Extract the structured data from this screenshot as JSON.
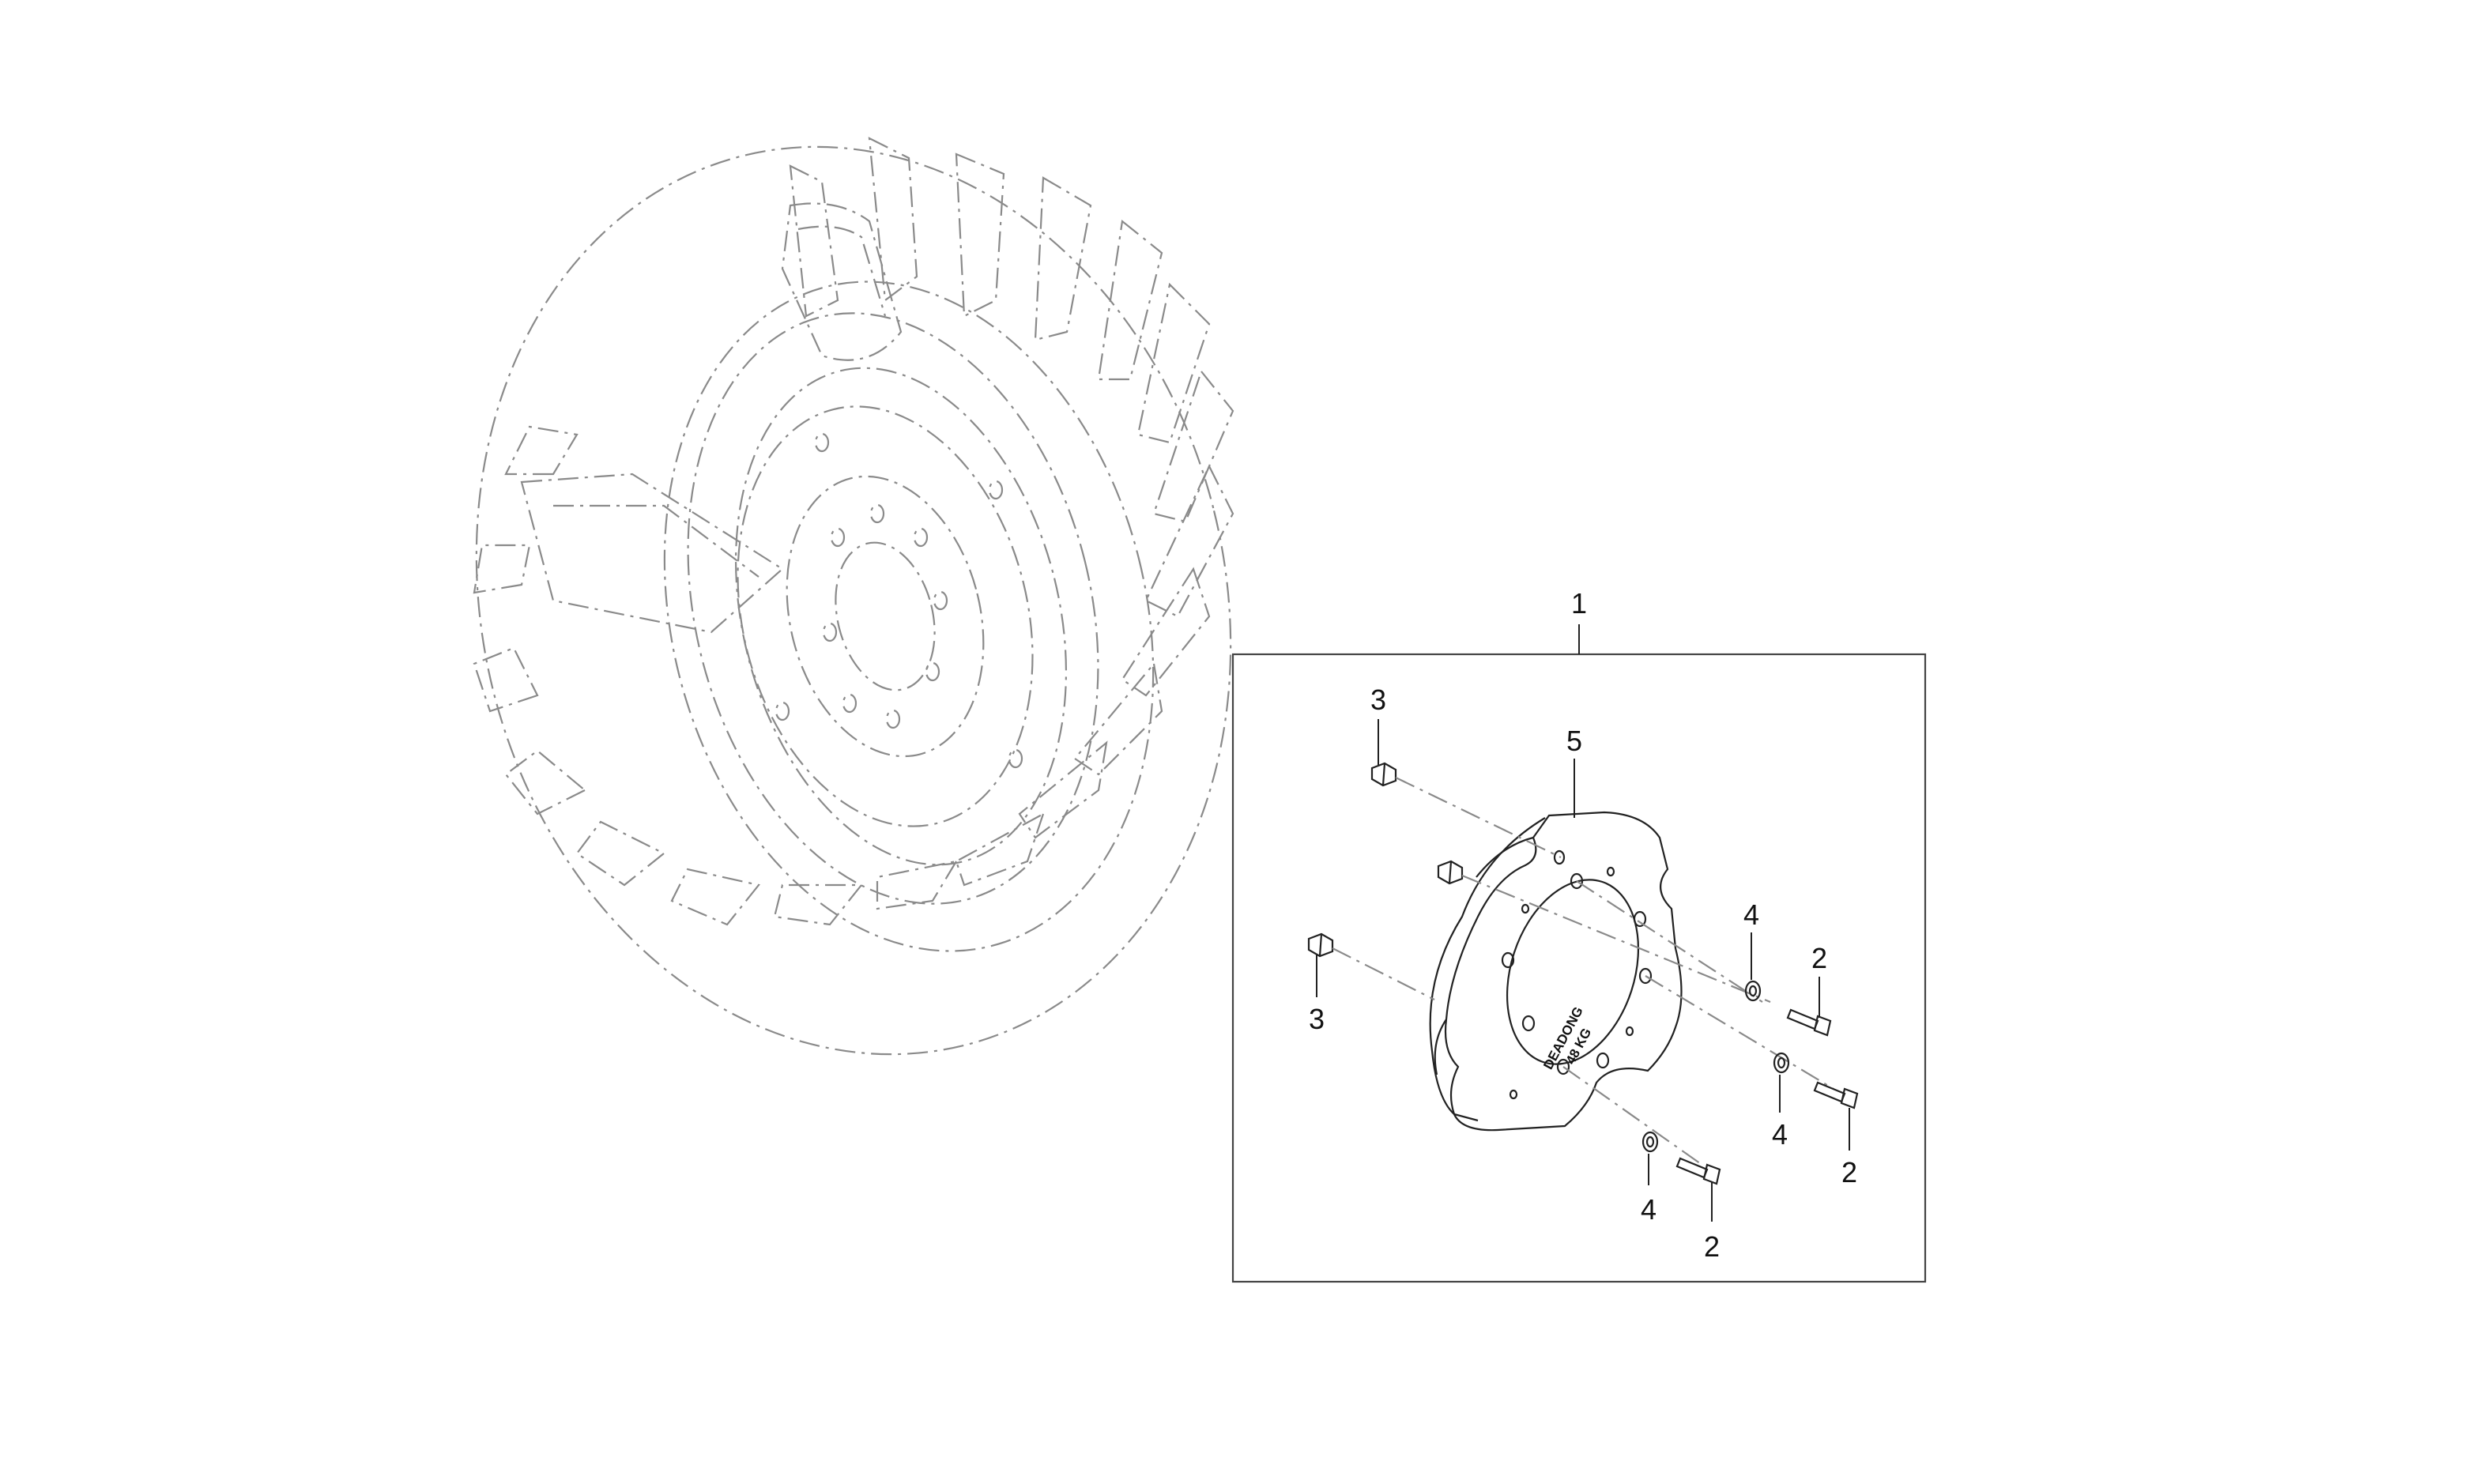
{
  "diagram": {
    "callouts": {
      "kit": "1",
      "bolt_a": "2",
      "bolt_b": "2",
      "bolt_c": "2",
      "nut_top": "3",
      "nut_left": "3",
      "washer_a": "4",
      "washer_b": "4",
      "washer_c": "4",
      "weight_plate": "5"
    },
    "plate_marking": {
      "brand": "DEADONG",
      "weight": "48 KG"
    }
  }
}
